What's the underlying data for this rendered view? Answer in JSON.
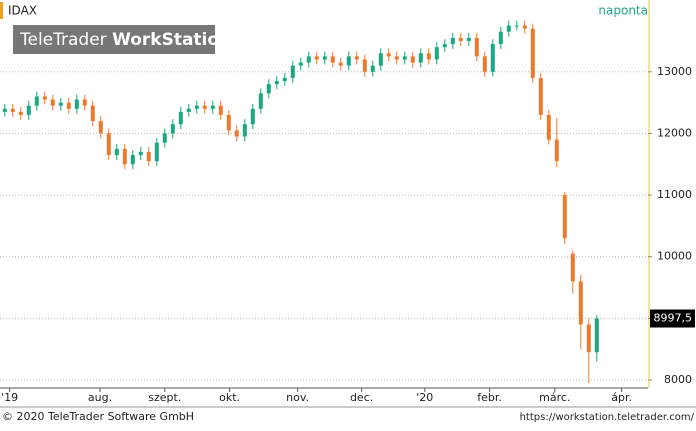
{
  "chart_data": {
    "type": "candlestick",
    "title": "IDAX",
    "period": "naponta",
    "watermark": {
      "brand": "TeleTrader",
      "product": "WorkStation"
    },
    "footer": {
      "copyright": "© 2020 TeleTrader Software GmbH",
      "url": "https://workstation.teletrader.com/"
    },
    "up_color": "#18a883",
    "down_color": "#ec7a2c",
    "grid": true,
    "open": [
      12350,
      12400,
      12350,
      12300,
      12450,
      12600,
      12550,
      12450,
      12500,
      12400,
      12550,
      12450,
      12200,
      12000,
      11650,
      11750,
      11500,
      11650,
      11700,
      11550,
      11850,
      12000,
      12150,
      12350,
      12400,
      12450,
      12400,
      12450,
      12300,
      12050,
      11950,
      12150,
      12400,
      12650,
      12800,
      12850,
      12900,
      13100,
      13150,
      13250,
      13200,
      13250,
      13150,
      13100,
      13250,
      13200,
      13000,
      13100,
      13300,
      13250,
      13200,
      13250,
      13150,
      13300,
      13200,
      13400,
      13450,
      13550,
      13500,
      13550,
      13250,
      13000,
      13450,
      13650,
      13750,
      13750,
      13700,
      12900,
      12300,
      11900,
      11000,
      10050,
      9600,
      8900,
      8450
    ],
    "high": [
      12480,
      12480,
      12430,
      12530,
      12680,
      12680,
      12630,
      12580,
      12580,
      12630,
      12630,
      12530,
      12280,
      12080,
      11830,
      11830,
      11730,
      11780,
      11780,
      11930,
      12080,
      12230,
      12430,
      12480,
      12530,
      12530,
      12530,
      12530,
      12380,
      12130,
      12230,
      12480,
      12730,
      12880,
      12930,
      12980,
      13180,
      13230,
      13330,
      13330,
      13330,
      13330,
      13230,
      13330,
      13330,
      13280,
      13180,
      13380,
      13380,
      13330,
      13330,
      13330,
      13380,
      13380,
      13480,
      13530,
      13630,
      13630,
      13630,
      13630,
      13330,
      13530,
      13730,
      13830,
      13830,
      13830,
      13780,
      12980,
      12380,
      12250,
      11050,
      10100,
      9700,
      9000,
      9050
    ],
    "low": [
      12270,
      12270,
      12220,
      12220,
      12370,
      12470,
      12370,
      12370,
      12320,
      12320,
      12370,
      12120,
      11920,
      11570,
      11570,
      11420,
      11420,
      11570,
      11470,
      11470,
      11770,
      11920,
      12070,
      12270,
      12320,
      12320,
      12320,
      12220,
      11970,
      11870,
      11870,
      12070,
      12320,
      12570,
      12720,
      12770,
      12820,
      13020,
      13070,
      13120,
      13120,
      13070,
      13020,
      13020,
      13120,
      12920,
      12920,
      13020,
      13170,
      13120,
      13120,
      13070,
      13070,
      13120,
      13120,
      13320,
      13370,
      13420,
      13420,
      13170,
      12920,
      12920,
      13370,
      13570,
      13670,
      13620,
      12820,
      12220,
      11820,
      11450,
      10200,
      9400,
      8500,
      7950,
      8300
    ],
    "close": [
      12400,
      12350,
      12300,
      12450,
      12600,
      12550,
      12450,
      12500,
      12400,
      12550,
      12450,
      12200,
      12000,
      11650,
      11750,
      11500,
      11650,
      11700,
      11550,
      11850,
      12000,
      12150,
      12350,
      12400,
      12450,
      12400,
      12450,
      12300,
      12050,
      11950,
      12150,
      12400,
      12650,
      12800,
      12850,
      12900,
      13100,
      13150,
      13250,
      13200,
      13250,
      13150,
      13100,
      13250,
      13200,
      13000,
      13100,
      13300,
      13250,
      13200,
      13250,
      13150,
      13300,
      13200,
      13400,
      13450,
      13550,
      13500,
      13550,
      13250,
      13000,
      13450,
      13650,
      13750,
      13750,
      13700,
      12900,
      12300,
      11900,
      11550,
      10300,
      9600,
      8900,
      8450,
      8997.5
    ],
    "last_price": {
      "value": 8997.5,
      "label": "8997,5"
    },
    "ylim": [
      7870,
      14100
    ],
    "yticks": [
      8000,
      9000,
      10000,
      11000,
      12000,
      13000
    ],
    "xlim": [
      -0.6,
      80.4
    ],
    "xticks": [
      {
        "value": 0.6,
        "label": "'19"
      },
      {
        "value": 11.9,
        "label": "aug."
      },
      {
        "value": 20,
        "label": "szept."
      },
      {
        "value": 28.1,
        "label": "okt."
      },
      {
        "value": 36.6,
        "label": "nov."
      },
      {
        "value": 44.6,
        "label": "dec."
      },
      {
        "value": 52.5,
        "label": "'20"
      },
      {
        "value": 60.6,
        "label": "febr."
      },
      {
        "value": 68.75,
        "label": "márc."
      },
      {
        "value": 77.1,
        "label": "ápr."
      }
    ]
  }
}
